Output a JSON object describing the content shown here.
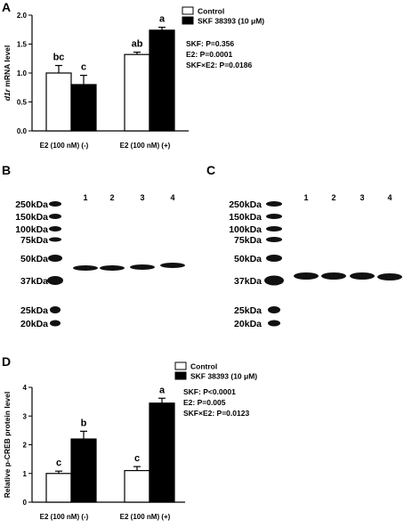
{
  "panels": {
    "a": "A",
    "b": "B",
    "c": "C",
    "d": "D"
  },
  "colors": {
    "control_fill": "#ffffff",
    "skf_fill": "#000000",
    "band": "#111111",
    "blot_bg": "#ffffff"
  },
  "chart_data": [
    {
      "id": "panel-a",
      "type": "bar",
      "ylabel_pre": "d1r",
      "ylabel_post": " mRNA level",
      "ylim": [
        0,
        2.0
      ],
      "yticks": [
        "0.0",
        "0.5",
        "1.0",
        "1.5",
        "2.0"
      ],
      "ytick_values": [
        0,
        0.5,
        1.0,
        1.5,
        2.0
      ],
      "categories": [
        "E2 (100 nM) (-)",
        "E2 (100 nM) (+)"
      ],
      "series": [
        {
          "name": "Control",
          "values": [
            1.0,
            1.32
          ],
          "errors": [
            0.13,
            0.04
          ],
          "letters": [
            "bc",
            "ab"
          ]
        },
        {
          "name": "SKF 38393 (10 μM)",
          "values": [
            0.8,
            1.74
          ],
          "errors": [
            0.16,
            0.05
          ],
          "letters": [
            "c",
            "a"
          ]
        }
      ],
      "stats": [
        "SKF: P=0.356",
        "E2: P=0.0001",
        "SKF×E2: P=0.0186"
      ]
    },
    {
      "id": "panel-d",
      "type": "bar",
      "ylabel": "Relative p-CREB protein level",
      "ylim": [
        0,
        4
      ],
      "yticks": [
        "0",
        "1",
        "2",
        "3",
        "4"
      ],
      "ytick_values": [
        0,
        1,
        2,
        3,
        4
      ],
      "categories": [
        "E2 (100 nM) (-)",
        "E2 (100 nM) (+)"
      ],
      "series": [
        {
          "name": "Control",
          "values": [
            1.0,
            1.1
          ],
          "errors": [
            0.08,
            0.14
          ],
          "letters": [
            "c",
            "c"
          ]
        },
        {
          "name": "SKF 38393 (10 μM)",
          "values": [
            2.2,
            3.45
          ],
          "errors": [
            0.27,
            0.17
          ],
          "letters": [
            "b",
            "a"
          ]
        }
      ],
      "stats": [
        "SKF: P<0.0001",
        "E2: P=0.005",
        "SKF×E2: P=0.0123"
      ]
    }
  ],
  "blots": {
    "b": {
      "markers": [
        "250kDa",
        "150kDa",
        "100kDa",
        "75kDa",
        "50kDa",
        "37kDa",
        "25kDa",
        "20kDa"
      ],
      "lanes": [
        "1",
        "2",
        "3",
        "4"
      ]
    },
    "c": {
      "markers": [
        "250kDa",
        "150kDa",
        "100kDa",
        "75kDa",
        "50kDa",
        "37kDa",
        "25kDa",
        "20kDa"
      ],
      "lanes": [
        "1",
        "2",
        "3",
        "4"
      ]
    }
  }
}
